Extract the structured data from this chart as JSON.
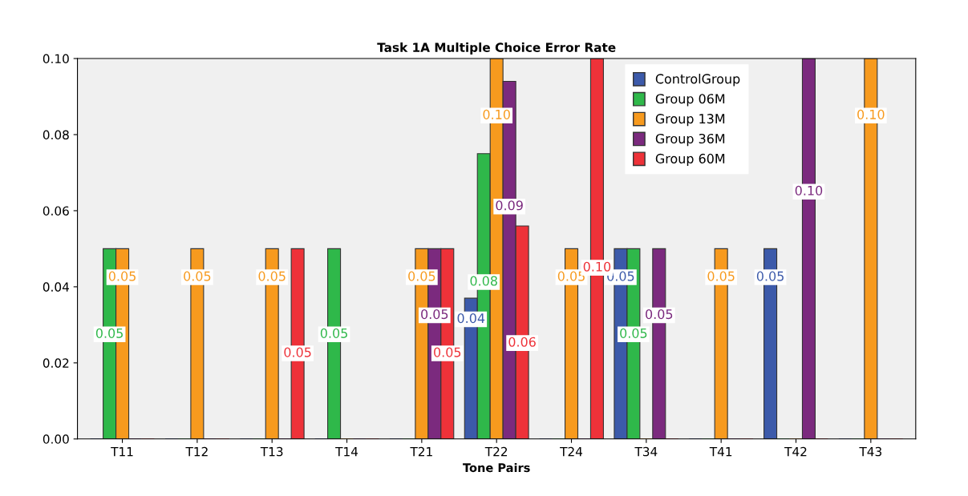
{
  "chart_data": {
    "type": "bar",
    "title": "Task 1A Multiple Choice Error Rate",
    "xlabel": "Tone Pairs",
    "categories": [
      "T11",
      "T12",
      "T13",
      "T14",
      "T21",
      "T22",
      "T24",
      "T34",
      "T41",
      "T42",
      "T43"
    ],
    "series": [
      {
        "name": "ControlGroup",
        "color": "#3c5aaa",
        "values": [
          0,
          0,
          0,
          0,
          0,
          0.037,
          0,
          0.05,
          0,
          0.05,
          0
        ],
        "value_labels": [
          null,
          null,
          null,
          null,
          null,
          "0.04",
          null,
          "0.05",
          null,
          "0.05",
          null
        ]
      },
      {
        "name": "Group 06M",
        "color": "#2fb84a",
        "values": [
          0.05,
          0,
          0,
          0.05,
          0,
          0.075,
          0,
          0.05,
          0,
          0,
          0
        ],
        "value_labels": [
          "0.05",
          null,
          null,
          "0.05",
          null,
          "0.08",
          null,
          "0.05",
          null,
          null,
          null
        ]
      },
      {
        "name": "Group 13M",
        "color": "#f79a1e",
        "values": [
          0.05,
          0.05,
          0.05,
          0,
          0.05,
          0.1,
          0.05,
          0,
          0.05,
          0,
          0.1
        ],
        "value_labels": [
          "0.05",
          "0.05",
          "0.05",
          null,
          "0.05",
          "0.10",
          "0.05",
          null,
          "0.05",
          null,
          "0.10"
        ]
      },
      {
        "name": "Group 36M",
        "color": "#7b2a7e",
        "values": [
          0,
          0,
          0,
          0,
          0.05,
          0.094,
          0,
          0.05,
          0,
          0.1,
          0
        ],
        "value_labels": [
          null,
          null,
          null,
          null,
          "0.05",
          "0.09",
          null,
          "0.05",
          null,
          "0.10",
          null
        ]
      },
      {
        "name": "Group 60M",
        "color": "#ee3239",
        "values": [
          0,
          0,
          0.05,
          0,
          0.05,
          0.056,
          0.1,
          0,
          0,
          0,
          0
        ],
        "value_labels": [
          null,
          null,
          "0.05",
          null,
          "0.05",
          "0.06",
          "0.10",
          null,
          null,
          null,
          null
        ]
      }
    ],
    "ylim": [
      0,
      0.1
    ],
    "yticks": [
      {
        "value": 0,
        "label": "0.00"
      },
      {
        "value": 0.02,
        "label": "0.02"
      },
      {
        "value": 0.04,
        "label": "0.04"
      },
      {
        "value": 0.06,
        "label": "0.06"
      },
      {
        "value": 0.08,
        "label": "0.08"
      },
      {
        "value": 0.1,
        "label": "0.10"
      }
    ],
    "grid": false,
    "legend": "top"
  }
}
